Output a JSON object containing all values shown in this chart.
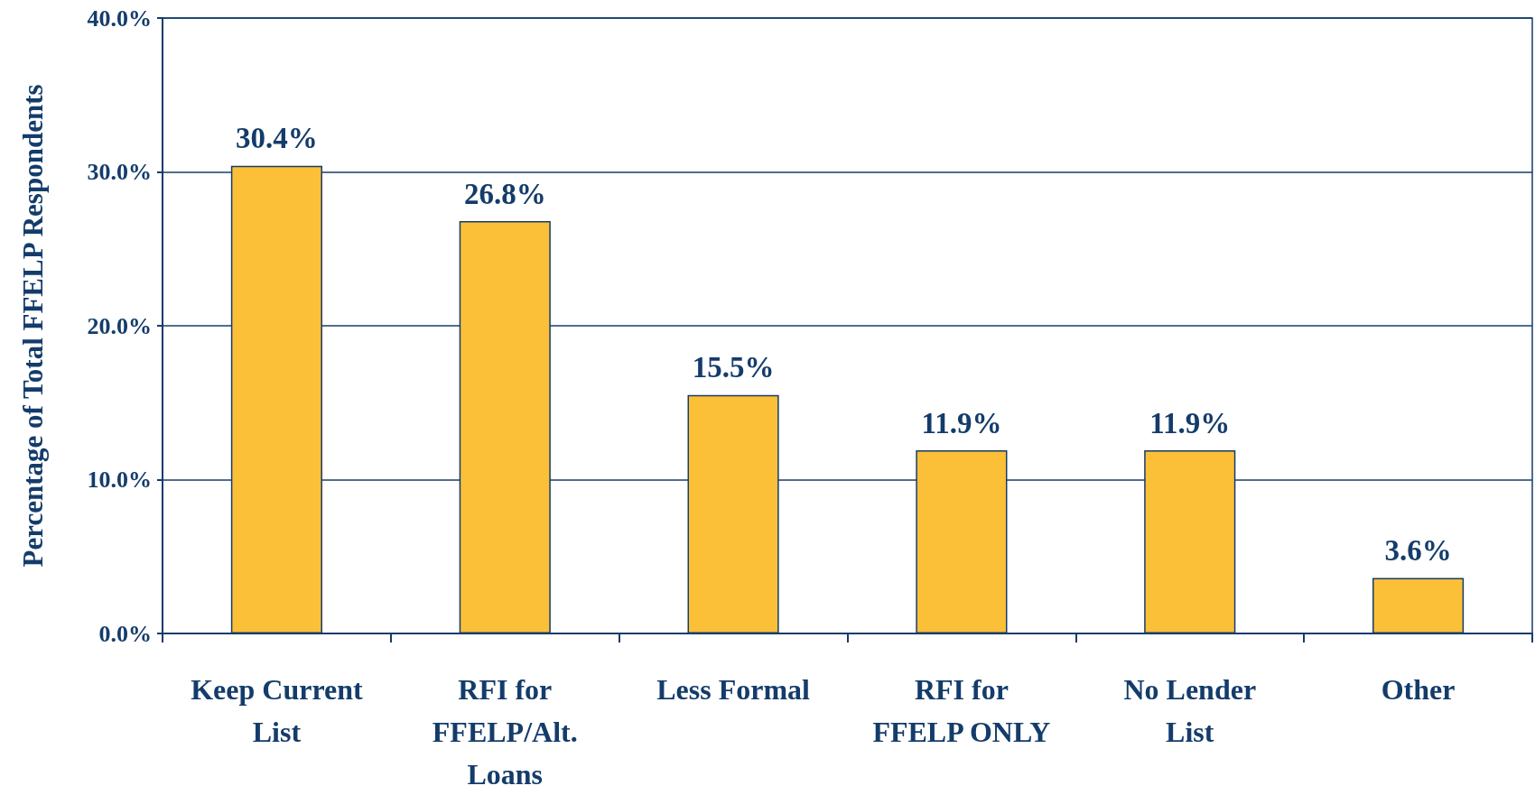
{
  "chart_data": {
    "type": "bar",
    "ylabel": "Percentage of Total FFELP Respondents",
    "categories": [
      "Keep Current\nList",
      "RFI for\nFFELP/Alt.\nLoans",
      "Less Formal",
      "RFI for\nFFELP ONLY",
      "No Lender\nList",
      "Other"
    ],
    "values": [
      30.4,
      26.8,
      15.5,
      11.9,
      11.9,
      3.6
    ],
    "value_labels": [
      "30.4%",
      "26.8%",
      "15.5%",
      "11.9%",
      "11.9%",
      "3.6%"
    ],
    "color": "#fbc038",
    "ylim": [
      0,
      40
    ],
    "yticks": [
      {
        "value": 0,
        "label": "0.0%"
      },
      {
        "value": 10,
        "label": "10.0%"
      },
      {
        "value": 20,
        "label": "20.0%"
      },
      {
        "value": 30,
        "label": "30.0%"
      },
      {
        "value": 40,
        "label": "40.0%"
      }
    ],
    "grid": "y"
  }
}
